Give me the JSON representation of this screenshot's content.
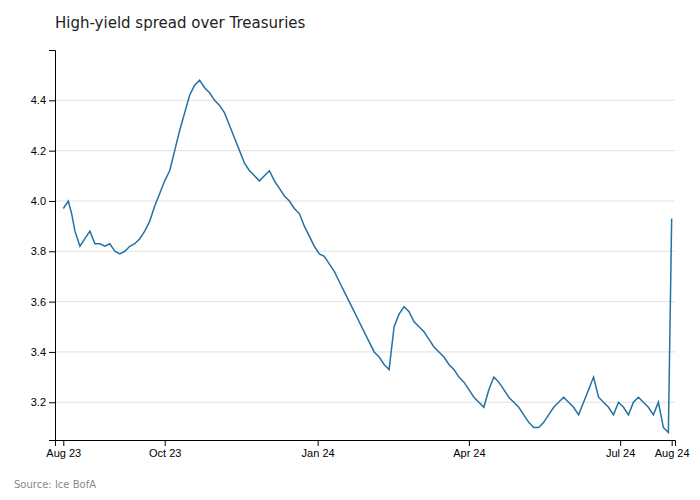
{
  "chart_data": {
    "type": "line",
    "title": "High-yield spread over Treasuries",
    "annotations": [
      "Source: Ice BofA"
    ],
    "x": [
      0,
      3,
      5,
      7,
      10,
      13,
      16,
      19,
      22,
      25,
      28,
      31,
      34,
      37,
      40,
      43,
      46,
      49,
      52,
      55,
      58,
      61,
      64,
      67,
      70,
      73,
      76,
      79,
      82,
      85,
      88,
      91,
      94,
      97,
      100,
      103,
      106,
      109,
      112,
      115,
      118,
      121,
      124,
      127,
      130,
      133,
      136,
      139,
      142,
      145,
      148,
      151,
      154,
      157,
      160,
      163,
      166,
      169,
      172,
      175,
      178,
      181,
      184,
      187,
      190,
      193,
      196,
      199,
      202,
      205,
      208,
      211,
      214,
      217,
      220,
      223,
      226,
      229,
      232,
      235,
      238,
      241,
      244,
      247,
      250,
      253,
      256,
      259,
      262,
      265,
      268,
      271,
      274,
      277,
      280,
      283,
      286,
      289,
      292,
      295,
      298,
      301,
      304,
      307,
      310,
      313,
      316,
      319,
      322,
      325,
      328,
      331,
      334,
      337,
      340,
      343,
      346,
      349,
      352,
      355,
      358,
      361,
      364,
      366
    ],
    "values": [
      3.97,
      4.0,
      3.95,
      3.88,
      3.82,
      3.85,
      3.88,
      3.83,
      3.83,
      3.82,
      3.83,
      3.8,
      3.79,
      3.8,
      3.82,
      3.83,
      3.85,
      3.88,
      3.92,
      3.98,
      4.03,
      4.08,
      4.12,
      4.2,
      4.28,
      4.35,
      4.42,
      4.46,
      4.48,
      4.45,
      4.43,
      4.4,
      4.38,
      4.35,
      4.3,
      4.25,
      4.2,
      4.15,
      4.12,
      4.1,
      4.08,
      4.1,
      4.12,
      4.08,
      4.05,
      4.02,
      4.0,
      3.97,
      3.95,
      3.9,
      3.86,
      3.82,
      3.79,
      3.78,
      3.75,
      3.72,
      3.68,
      3.64,
      3.6,
      3.56,
      3.52,
      3.48,
      3.44,
      3.4,
      3.38,
      3.35,
      3.33,
      3.5,
      3.55,
      3.58,
      3.56,
      3.52,
      3.5,
      3.48,
      3.45,
      3.42,
      3.4,
      3.38,
      3.35,
      3.33,
      3.3,
      3.28,
      3.25,
      3.22,
      3.2,
      3.18,
      3.25,
      3.3,
      3.28,
      3.25,
      3.22,
      3.2,
      3.18,
      3.15,
      3.12,
      3.1,
      3.1,
      3.12,
      3.15,
      3.18,
      3.2,
      3.22,
      3.2,
      3.18,
      3.15,
      3.2,
      3.25,
      3.3,
      3.22,
      3.2,
      3.18,
      3.15,
      3.2,
      3.18,
      3.15,
      3.2,
      3.22,
      3.2,
      3.18,
      3.15,
      3.2,
      3.1,
      3.08,
      3.93
    ],
    "color": "#2471a3",
    "xlim": [
      -5,
      368
    ],
    "xticks": [
      {
        "value": 0,
        "label": "Aug 23"
      },
      {
        "value": 61,
        "label": "Oct 23"
      },
      {
        "value": 153,
        "label": "Jan 24"
      },
      {
        "value": 244,
        "label": "Apr 24"
      },
      {
        "value": 335,
        "label": "Jul 24"
      },
      {
        "value": 366,
        "label": "Aug 24"
      }
    ],
    "ylim": [
      3.05,
      4.6
    ],
    "yticks": [
      3.2,
      3.4,
      3.6,
      3.8,
      {
        "value": 4.0,
        "label": "4.0"
      },
      4.2,
      4.4
    ],
    "grid": true
  }
}
